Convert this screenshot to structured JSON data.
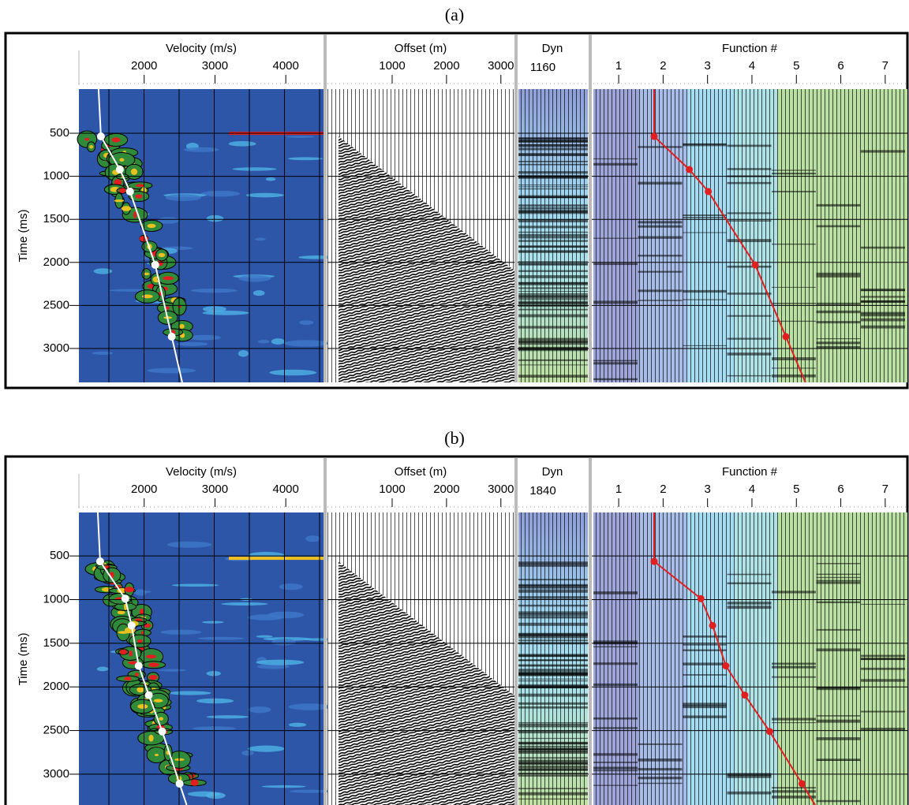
{
  "figure": {
    "panels": [
      {
        "label": "(a)",
        "time_axis": {
          "title": "Time (ms)",
          "ylim": [
            -13,
            3394
          ],
          "yticks": [
            500,
            1000,
            1500,
            2000,
            2500,
            3000
          ]
        },
        "velocity_panel": {
          "title": "Velocity (m/s)",
          "xlim": [
            1078,
            4533
          ],
          "xticks": [
            2000,
            3000,
            4000
          ],
          "picks": {
            "time": [
              537,
              921,
              1177,
              2029,
              2863
            ],
            "velocity": [
              1389,
              1656,
              1800,
              2156,
              2389
            ]
          }
        },
        "offset_panel": {
          "title": "Offset (m)",
          "xlim": [
            -190,
            3250
          ],
          "xticks": [
            1000,
            2000,
            3000
          ]
        },
        "dyn_panel": {
          "title": "Dyn",
          "value": 1160
        },
        "function_panel": {
          "title": "Function #",
          "xlim": [
            0.43,
            7.5
          ],
          "xticks": [
            1,
            2,
            3,
            4,
            5,
            6,
            7
          ]
        }
      },
      {
        "label": "(b)",
        "time_axis": {
          "title": "Time (ms)",
          "ylim": [
            2,
            3362
          ],
          "yticks": [
            500,
            1000,
            1500,
            2000,
            2500,
            3000
          ]
        },
        "velocity_panel": {
          "title": "Velocity (m/s)",
          "xlim": [
            1078,
            4533
          ],
          "xticks": [
            2000,
            3000,
            4000
          ],
          "picks": {
            "time": [
              563,
              989,
              1297,
              1759,
              2094,
              2511,
              3109
            ],
            "velocity": [
              1378,
              1733,
              1822,
              1922,
              2066,
              2255,
              2500
            ]
          }
        },
        "offset_panel": {
          "title": "Offset (m)",
          "xlim": [
            -190,
            3250
          ],
          "xticks": [
            1000,
            2000,
            3000
          ]
        },
        "dyn_panel": {
          "title": "Dyn",
          "value": 1840
        },
        "function_panel": {
          "title": "Function #",
          "xlim": [
            0.43,
            7.5
          ],
          "xticks": [
            1,
            2,
            3,
            4,
            5,
            6,
            7
          ]
        }
      }
    ]
  }
}
